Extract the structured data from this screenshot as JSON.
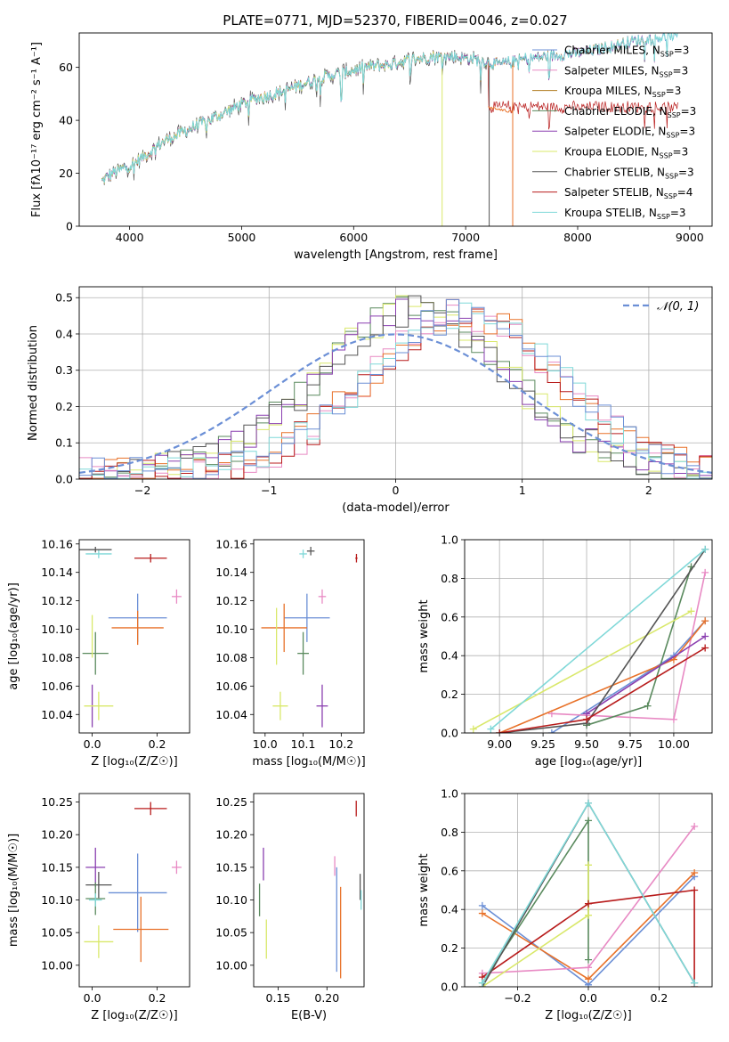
{
  "figure": {
    "title": "PLATE=0771, MJD=52370, FIBERID=0046, z=0.027"
  },
  "colors": {
    "Chabrier MILES": "#6b8fd6",
    "Salpeter MILES": "#e88ac4",
    "Kroupa MILES": "#b07c1e",
    "Chabrier ELODIE": "#5a8a5e",
    "Salpeter ELODIE": "#8a3fb0",
    "Kroupa ELODIE": "#d9e86a",
    "Chabrier STELIB": "#555555",
    "Salpeter STELIB": "#b81c1c",
    "Kroupa STELIB": "#7fd8d8",
    "orange": "#e8722a",
    "normal": "#6b8fd6",
    "grid": "#b0b0b0"
  },
  "chart_data": [
    {
      "id": "spectrum",
      "type": "line",
      "title": "PLATE=0771, MJD=52370, FIBERID=0046, z=0.027",
      "xlabel": "wavelength [Angstrom, rest frame]",
      "ylabel": "Flux [fλ10⁻¹⁷ erg cm⁻² s⁻¹ A⁻¹]",
      "xlim": [
        3550,
        9200
      ],
      "ylim": [
        0,
        73
      ],
      "xticks": [
        4000,
        5000,
        6000,
        7000,
        8000,
        9000
      ],
      "yticks": [
        0,
        20,
        40,
        60
      ],
      "legend_position": "upper right",
      "legend": [
        {
          "name": "Chabrier MILES",
          "nssp": "3"
        },
        {
          "name": "Salpeter MILES",
          "nssp": "3"
        },
        {
          "name": "Kroupa MILES",
          "nssp": "3"
        },
        {
          "name": "Chabrier ELODIE",
          "nssp": "3"
        },
        {
          "name": "Salpeter ELODIE",
          "nssp": "3"
        },
        {
          "name": "Kroupa ELODIE",
          "nssp": "3"
        },
        {
          "name": "Chabrier STELIB",
          "nssp": "3"
        },
        {
          "name": "Salpeter STELIB",
          "nssp": "4"
        },
        {
          "name": "Kroupa STELIB",
          "nssp": "3"
        }
      ],
      "continuum_x": [
        3750,
        3850,
        3950,
        4050,
        4150,
        4300,
        4500,
        4700,
        4900,
        5100,
        5300,
        5500,
        5700,
        5900,
        6100,
        6300,
        6500,
        6700,
        6900,
        7100,
        7300,
        7500,
        7700,
        7900,
        8100,
        8300,
        8500,
        8700,
        8900
      ],
      "continuum_y": [
        17,
        20,
        22,
        24,
        27,
        32,
        36,
        40,
        44,
        48,
        50,
        53,
        56,
        58,
        60,
        61,
        63,
        64,
        64,
        63,
        61,
        63,
        64,
        65,
        66,
        68,
        70,
        71,
        72
      ],
      "step_drops": [
        {
          "model": "Salpeter STELIB",
          "x": 7200,
          "to": 45
        },
        {
          "model": "Kroupa ELODIE",
          "x": 6790,
          "to": 0
        },
        {
          "model": "Chabrier STELIB",
          "x": 7210,
          "to": 0
        },
        {
          "model": "orange",
          "x": 7420,
          "to": 0
        }
      ]
    },
    {
      "id": "residuals",
      "type": "step",
      "xlabel": "(data-model)/error",
      "ylabel": "Normed distribution",
      "xlim": [
        -2.5,
        2.5
      ],
      "ylim": [
        0,
        0.53
      ],
      "xticks": [
        -2,
        -1,
        0,
        1,
        2
      ],
      "yticks": [
        0.0,
        0.1,
        0.2,
        0.3,
        0.4,
        0.5
      ],
      "legend_label": "𝒩(0, 1)",
      "bin_width": 0.1,
      "group_a": {
        "models": [
          "Chabrier ELODIE",
          "Kroupa ELODIE",
          "Salpeter ELODIE",
          "Chabrier STELIB"
        ],
        "center": 0.15,
        "sigma": 0.75,
        "peak": 0.45
      },
      "group_b": {
        "models": [
          "Salpeter MILES",
          "orange",
          "Salpeter STELIB",
          "Kroupa STELIB",
          "Chabrier MILES"
        ],
        "center": 0.55,
        "sigma": 0.75,
        "peak": 0.44
      }
    },
    {
      "id": "age_vs_Z",
      "type": "errorbar",
      "xlabel": "Z [log₁₀(Z/Z☉)]",
      "ylabel": "age  [log₁₀(age/yr)]",
      "xlim": [
        -0.04,
        0.3
      ],
      "ylim": [
        10.027,
        10.163
      ],
      "xticks": [
        0.0,
        0.2
      ],
      "yticks": [
        10.04,
        10.06,
        10.08,
        10.1,
        10.12,
        10.14,
        10.16
      ],
      "points": [
        {
          "model": "Salpeter STELIB",
          "x": 0.18,
          "y": 10.15,
          "xerr": 0.05,
          "yerr": 0.003
        },
        {
          "model": "Kroupa STELIB",
          "x": 0.02,
          "y": 10.153,
          "xerr": 0.04,
          "yerr": 0.003
        },
        {
          "model": "Chabrier STELIB",
          "x": 0.01,
          "y": 10.156,
          "xerr": 0.05,
          "yerr": 0.002
        },
        {
          "model": "Salpeter MILES",
          "x": 0.26,
          "y": 10.123,
          "xerr": 0.015,
          "yerr": 0.005
        },
        {
          "model": "Chabrier MILES",
          "x": 0.14,
          "y": 10.108,
          "xerr": 0.09,
          "yerr": 0.017
        },
        {
          "model": "orange",
          "x": 0.14,
          "y": 10.101,
          "xerr": 0.08,
          "yerr": 0.012
        },
        {
          "model": "Chabrier ELODIE",
          "x": 0.01,
          "y": 10.083,
          "xerr": 0.04,
          "yerr": 0.015
        },
        {
          "model": "Kroupa ELODIE",
          "x": 0.0,
          "y": 10.095,
          "xerr": 0.0,
          "yerr": 0.015
        },
        {
          "model": "Salpeter ELODIE",
          "x": 0.0,
          "y": 10.046,
          "xerr": 0.0,
          "yerr": 0.015
        },
        {
          "model": "Kroupa ELODIE",
          "x": 0.02,
          "y": 10.046,
          "xerr": 0.045,
          "yerr": 0.01
        }
      ]
    },
    {
      "id": "age_vs_mass",
      "type": "errorbar",
      "xlabel": "mass [log₁₀(M/M☉)]",
      "ylabel": "",
      "xlim": [
        9.97,
        10.26
      ],
      "ylim": [
        10.027,
        10.163
      ],
      "xticks": [
        10.0,
        10.1,
        10.2
      ],
      "yticks": [
        10.04,
        10.06,
        10.08,
        10.1,
        10.12,
        10.14,
        10.16
      ],
      "points": [
        {
          "model": "Salpeter STELIB",
          "x": 10.24,
          "y": 10.15,
          "xerr": 0.003,
          "yerr": 0.003
        },
        {
          "model": "Kroupa STELIB",
          "x": 10.1,
          "y": 10.153,
          "xerr": 0.01,
          "yerr": 0.003
        },
        {
          "model": "Chabrier STELIB",
          "x": 10.12,
          "y": 10.155,
          "xerr": 0.01,
          "yerr": 0.003
        },
        {
          "model": "Salpeter MILES",
          "x": 10.15,
          "y": 10.123,
          "xerr": 0.01,
          "yerr": 0.005
        },
        {
          "model": "Chabrier MILES",
          "x": 10.11,
          "y": 10.108,
          "xerr": 0.06,
          "yerr": 0.017
        },
        {
          "model": "orange",
          "x": 10.05,
          "y": 10.101,
          "xerr": 0.06,
          "yerr": 0.017
        },
        {
          "model": "Chabrier ELODIE",
          "x": 10.1,
          "y": 10.083,
          "xerr": 0.015,
          "yerr": 0.015
        },
        {
          "model": "Kroupa ELODIE",
          "x": 10.03,
          "y": 10.095,
          "xerr": 0.0,
          "yerr": 0.02
        },
        {
          "model": "Salpeter ELODIE",
          "x": 10.15,
          "y": 10.046,
          "xerr": 0.015,
          "yerr": 0.015
        },
        {
          "model": "Kroupa ELODIE",
          "x": 10.04,
          "y": 10.046,
          "xerr": 0.02,
          "yerr": 0.01
        }
      ]
    },
    {
      "id": "weight_vs_age",
      "type": "line",
      "xlabel": "age  [log₁₀(age/yr)]",
      "ylabel": "mass weight",
      "xlim": [
        8.8,
        10.22
      ],
      "ylim": [
        0,
        1.0
      ],
      "xticks": [
        9.0,
        9.25,
        9.5,
        9.75,
        10.0
      ],
      "yticks": [
        0.0,
        0.2,
        0.4,
        0.6,
        0.8,
        1.0
      ],
      "grid": true,
      "series": [
        {
          "model": "Chabrier MILES",
          "x": [
            9.3,
            10.0,
            10.18
          ],
          "y": [
            0.0,
            0.4,
            0.58
          ]
        },
        {
          "model": "Salpeter MILES",
          "x": [
            9.3,
            10.0,
            10.18
          ],
          "y": [
            0.1,
            0.07,
            0.83
          ]
        },
        {
          "model": "orange",
          "x": [
            9.0,
            10.0,
            10.18
          ],
          "y": [
            0.0,
            0.38,
            0.58
          ]
        },
        {
          "model": "Chabrier ELODIE",
          "x": [
            9.5,
            9.85,
            10.1
          ],
          "y": [
            0.04,
            0.14,
            0.86
          ]
        },
        {
          "model": "Salpeter ELODIE",
          "x": [
            9.5,
            10.18
          ],
          "y": [
            0.1,
            0.5
          ]
        },
        {
          "model": "Kroupa ELODIE",
          "x": [
            8.85,
            10.1
          ],
          "y": [
            0.02,
            0.63
          ]
        },
        {
          "model": "Chabrier STELIB",
          "x": [
            9.0,
            9.5,
            10.18
          ],
          "y": [
            0.0,
            0.05,
            0.95
          ]
        },
        {
          "model": "Salpeter STELIB",
          "x": [
            9.0,
            9.5,
            10.18
          ],
          "y": [
            0.0,
            0.07,
            0.44
          ]
        },
        {
          "model": "Kroupa STELIB",
          "x": [
            8.95,
            10.18
          ],
          "y": [
            0.02,
            0.95
          ]
        }
      ]
    },
    {
      "id": "mass_vs_Z",
      "type": "errorbar",
      "xlabel": "Z [log₁₀(Z/Z☉)]",
      "ylabel": "mass [log₁₀(M/M☉)]",
      "xlim": [
        -0.04,
        0.3
      ],
      "ylim": [
        9.967,
        10.263
      ],
      "xticks": [
        0.0,
        0.2
      ],
      "yticks": [
        10.0,
        10.05,
        10.1,
        10.15,
        10.2,
        10.25
      ],
      "points": [
        {
          "model": "Salpeter STELIB",
          "x": 0.18,
          "y": 10.24,
          "xerr": 0.05,
          "yerr": 0.01
        },
        {
          "model": "Salpeter MILES",
          "x": 0.26,
          "y": 10.15,
          "xerr": 0.015,
          "yerr": 0.01
        },
        {
          "model": "Salpeter ELODIE",
          "x": 0.01,
          "y": 10.15,
          "xerr": 0.03,
          "yerr": 0.03
        },
        {
          "model": "Chabrier STELIB",
          "x": 0.02,
          "y": 10.123,
          "xerr": 0.04,
          "yerr": 0.02
        },
        {
          "model": "Chabrier MILES",
          "x": 0.14,
          "y": 10.111,
          "xerr": 0.09,
          "yerr": 0.06
        },
        {
          "model": "Chabrier ELODIE",
          "x": 0.01,
          "y": 10.102,
          "xerr": 0.03,
          "yerr": 0.025
        },
        {
          "model": "Kroupa STELIB",
          "x": 0.01,
          "y": 10.1,
          "xerr": 0.02,
          "yerr": 0.01
        },
        {
          "model": "orange",
          "x": 0.15,
          "y": 10.055,
          "xerr": 0.085,
          "yerr": 0.05
        },
        {
          "model": "Kroupa ELODIE",
          "x": 0.02,
          "y": 10.036,
          "xerr": 0.045,
          "yerr": 0.025
        }
      ]
    },
    {
      "id": "mass_vs_ebv",
      "type": "errorbar",
      "xlabel": "E(B-V)",
      "ylabel": "",
      "xlim": [
        0.125,
        0.238
      ],
      "ylim": [
        9.967,
        10.263
      ],
      "xticks": [
        0.15,
        0.2
      ],
      "yticks": [
        10.0,
        10.05,
        10.1,
        10.15,
        10.2,
        10.25
      ],
      "points": [
        {
          "model": "Salpeter STELIB",
          "x": 0.23,
          "y": 10.24,
          "xerr": 0.0,
          "yerr": 0.012
        },
        {
          "model": "Salpeter ELODIE",
          "x": 0.135,
          "y": 10.155,
          "xerr": 0.0,
          "yerr": 0.025
        },
        {
          "model": "Salpeter MILES",
          "x": 0.208,
          "y": 10.152,
          "xerr": 0.0,
          "yerr": 0.015
        },
        {
          "model": "Chabrier STELIB",
          "x": 0.234,
          "y": 10.12,
          "xerr": 0.0,
          "yerr": 0.02
        },
        {
          "model": "Chabrier MILES",
          "x": 0.21,
          "y": 10.07,
          "xerr": 0.0,
          "yerr": 0.08
        },
        {
          "model": "Chabrier ELODIE",
          "x": 0.131,
          "y": 10.1,
          "xerr": 0.0,
          "yerr": 0.025
        },
        {
          "model": "Kroupa STELIB",
          "x": 0.235,
          "y": 10.1,
          "xerr": 0.0,
          "yerr": 0.015
        },
        {
          "model": "orange",
          "x": 0.214,
          "y": 10.05,
          "xerr": 0.0,
          "yerr": 0.07
        },
        {
          "model": "Kroupa ELODIE",
          "x": 0.138,
          "y": 10.04,
          "xerr": 0.0,
          "yerr": 0.03
        }
      ]
    },
    {
      "id": "weight_vs_Z",
      "type": "line",
      "xlabel": "Z [log₁₀(Z/Z☉)]",
      "ylabel": "mass weight",
      "xlim": [
        -0.35,
        0.35
      ],
      "ylim": [
        0,
        1.0
      ],
      "xticks": [
        -0.2,
        0.0,
        0.2
      ],
      "yticks": [
        0.0,
        0.2,
        0.4,
        0.6,
        0.8,
        1.0
      ],
      "grid": true,
      "series": [
        {
          "model": "Chabrier MILES",
          "x": [
            -0.3,
            0.0,
            0.3
          ],
          "y": [
            0.42,
            0.01,
            0.57
          ]
        },
        {
          "model": "orange",
          "x": [
            -0.3,
            0.0,
            0.3
          ],
          "y": [
            0.38,
            0.04,
            0.59
          ]
        },
        {
          "model": "Salpeter MILES",
          "x": [
            -0.3,
            0.0,
            0.3
          ],
          "y": [
            0.07,
            0.1,
            0.83
          ]
        },
        {
          "model": "Chabrier ELODIE",
          "x": [
            -0.3,
            0.0,
            0.0
          ],
          "y": [
            0.02,
            0.86,
            0.14
          ]
        },
        {
          "model": "Kroupa ELODIE",
          "x": [
            -0.3,
            0.0,
            0.0
          ],
          "y": [
            0.0,
            0.37,
            0.63
          ]
        },
        {
          "model": "Salpeter STELIB",
          "x": [
            -0.3,
            0.0,
            0.3,
            0.3
          ],
          "y": [
            0.05,
            0.43,
            0.5,
            0.0
          ]
        },
        {
          "model": "Chabrier STELIB",
          "x": [
            -0.3,
            0.0,
            0.3
          ],
          "y": [
            0.0,
            0.95,
            0.02
          ]
        },
        {
          "model": "Kroupa STELIB",
          "x": [
            -0.3,
            0.0,
            0.3
          ],
          "y": [
            0.02,
            0.95,
            0.02
          ]
        }
      ]
    }
  ]
}
